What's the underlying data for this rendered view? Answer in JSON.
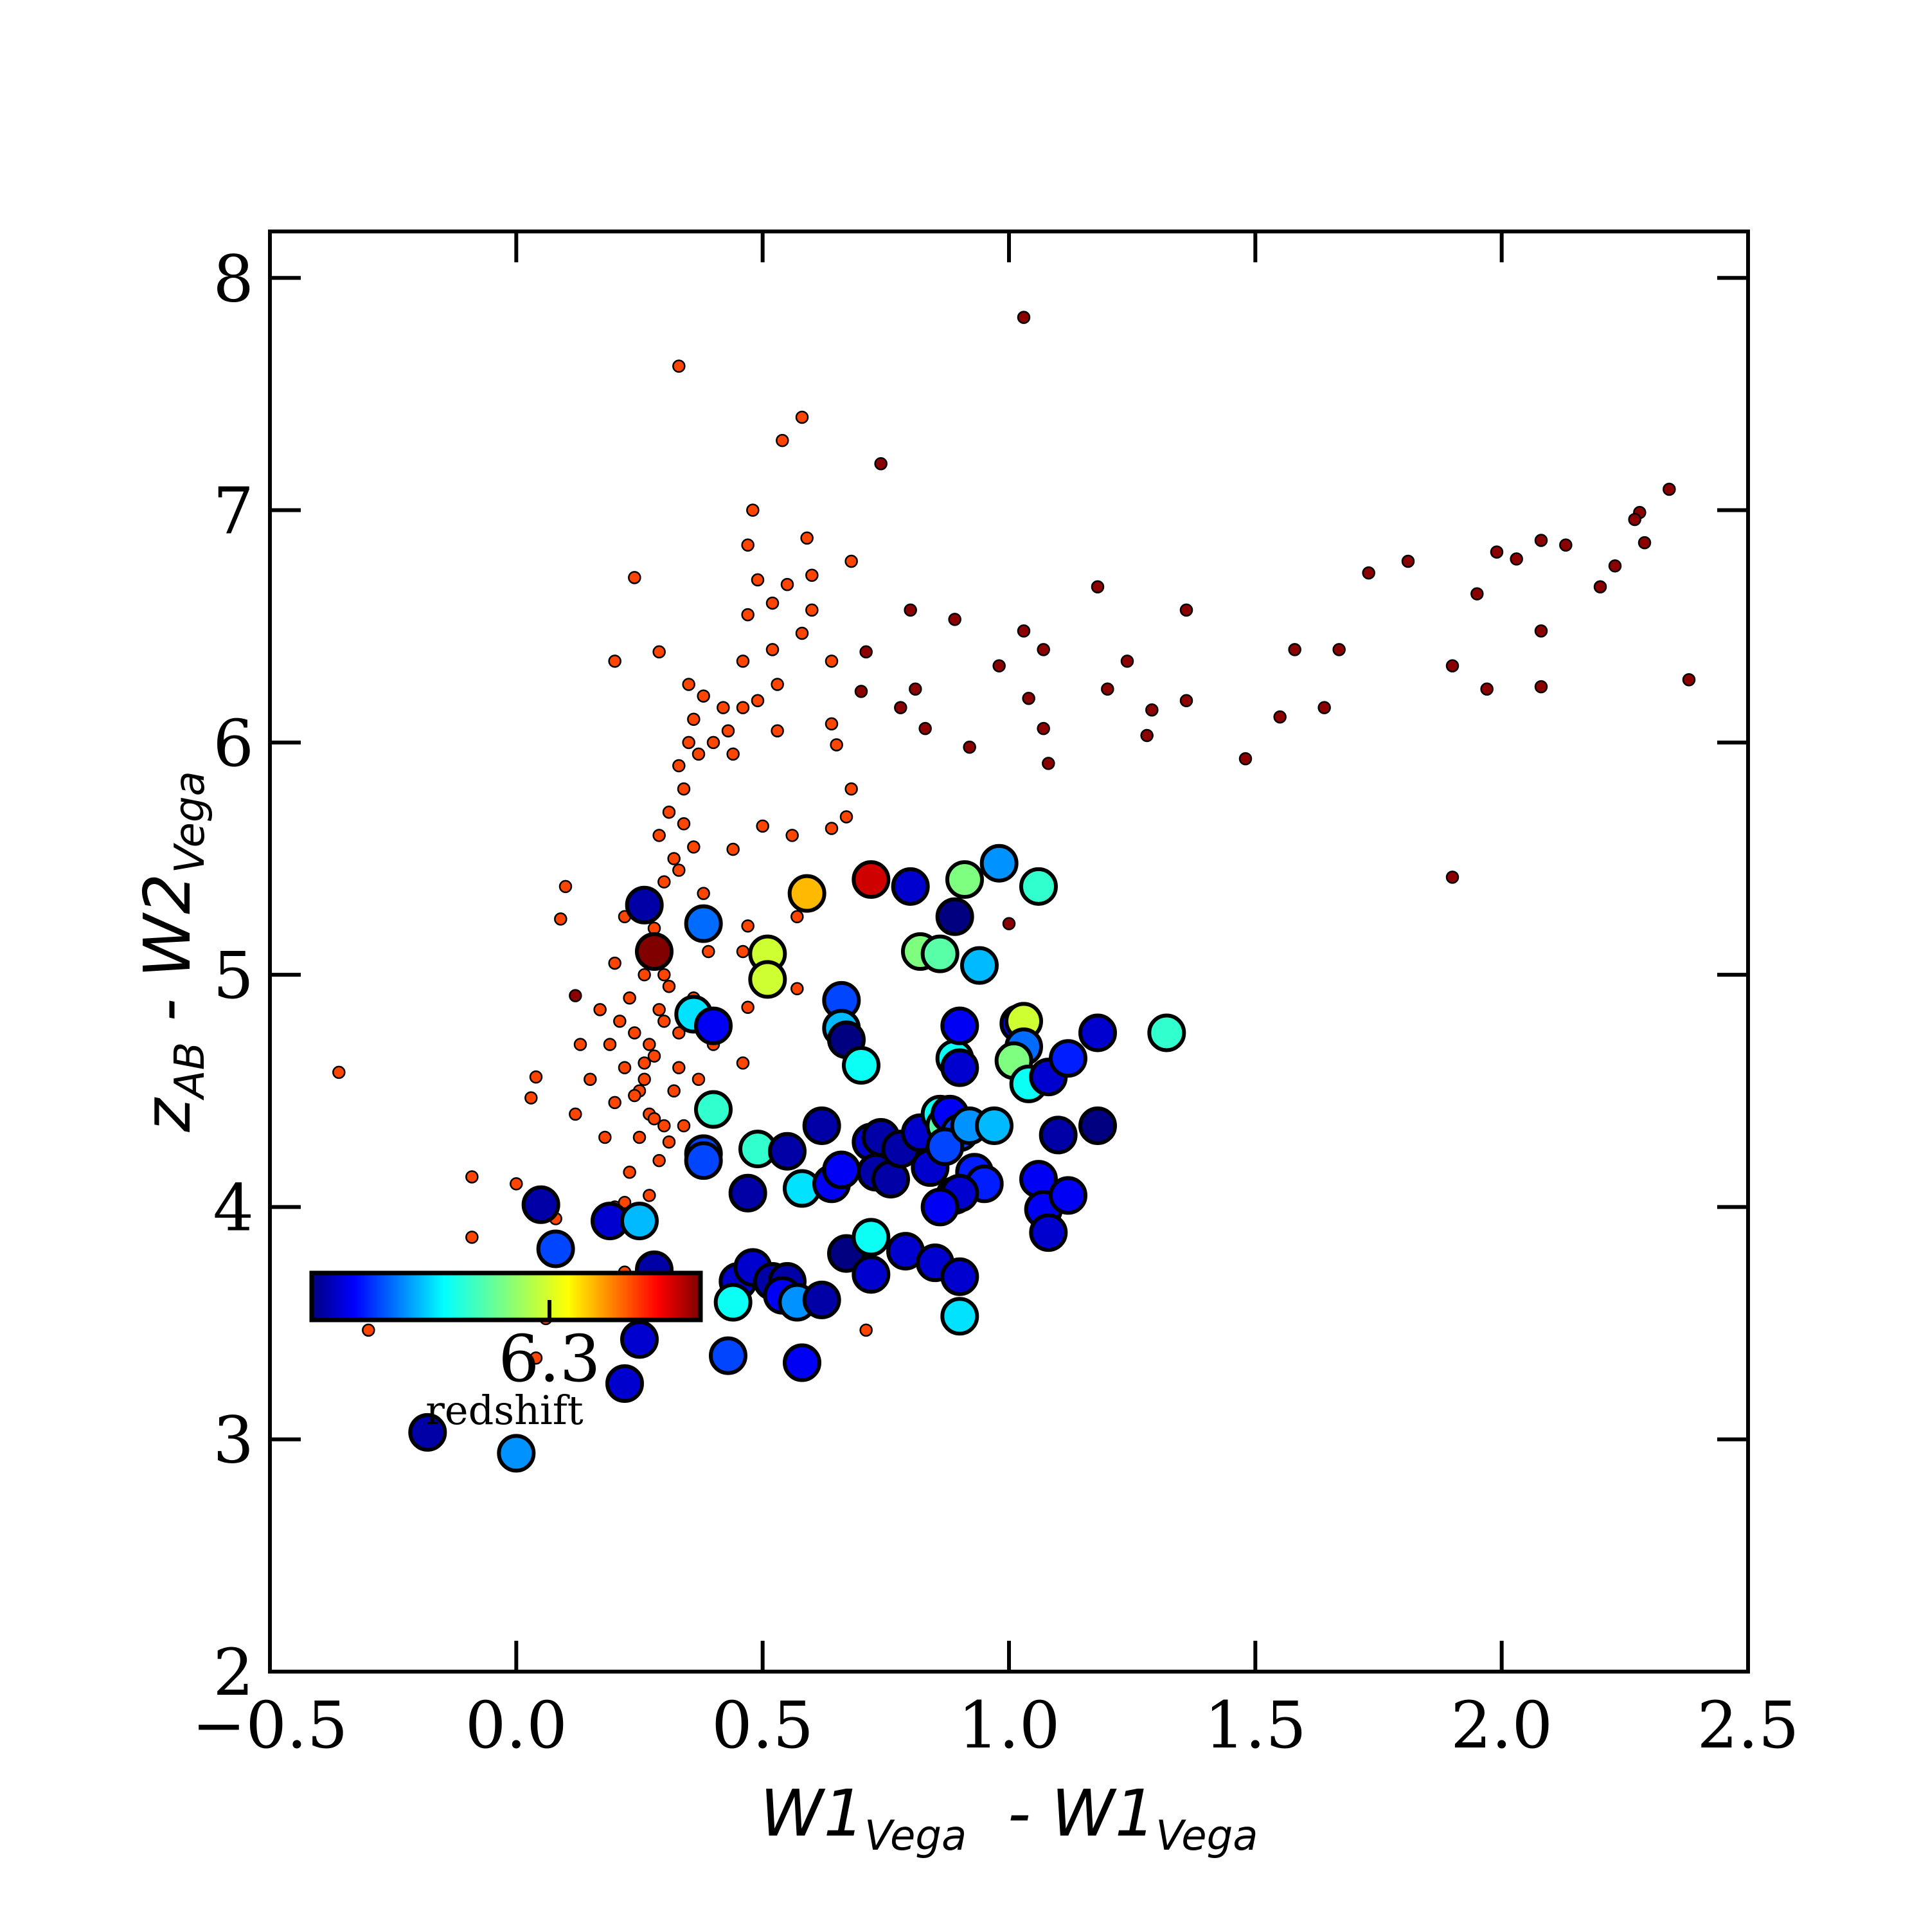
{
  "chart_data": {
    "type": "scatter",
    "xlabel": {
      "main_1": "W1",
      "sub_1": "Vega",
      "sep": "  - ",
      "main_2": "W1",
      "sub_2": "Vega"
    },
    "ylabel": {
      "main_1": "z",
      "sub_1": "AB",
      "sep": " - ",
      "main_2": "W2",
      "sub_2": "Vega"
    },
    "xlim": [
      -0.5,
      2.5
    ],
    "ylim": [
      2,
      8.2
    ],
    "x_ticks": [
      -0.5,
      0.0,
      0.5,
      1.0,
      1.5,
      2.0,
      2.5
    ],
    "x_tick_labels": [
      "−0.5",
      "0.0",
      "0.5",
      "1.0",
      "1.5",
      "2.0",
      "2.5"
    ],
    "y_ticks": [
      2,
      3,
      4,
      5,
      6,
      7,
      8
    ],
    "y_tick_labels": [
      "2",
      "3",
      "4",
      "5",
      "6",
      "7",
      "8"
    ],
    "grid": false,
    "colorbar": {
      "label": "redshift",
      "tick_value": 6.3,
      "tick_label": "6.3",
      "range": [
        5.7,
        7.0
      ],
      "colormap": "jet",
      "placement": "inside-lower-left"
    },
    "series": [
      {
        "marker": "small-circle",
        "color": "#ff4500",
        "points": [
          [
            0.25,
            4.5
          ],
          [
            0.22,
            4.6
          ],
          [
            0.27,
            4.7
          ],
          [
            0.3,
            4.8
          ],
          [
            0.23,
            4.9
          ],
          [
            0.26,
            4.55
          ],
          [
            0.28,
            4.65
          ],
          [
            0.24,
            4.75
          ],
          [
            0.29,
            4.85
          ],
          [
            0.31,
            4.95
          ],
          [
            0.2,
            4.45
          ],
          [
            0.33,
            4.6
          ],
          [
            0.21,
            4.8
          ],
          [
            0.27,
            4.4
          ],
          [
            0.25,
            4.3
          ],
          [
            0.3,
            4.35
          ],
          [
            0.19,
            4.7
          ],
          [
            0.32,
            4.5
          ],
          [
            0.26,
            5.0
          ],
          [
            0.28,
            5.2
          ],
          [
            0.24,
            5.3
          ],
          [
            0.3,
            5.4
          ],
          [
            0.32,
            5.5
          ],
          [
            0.29,
            5.6
          ],
          [
            0.31,
            5.7
          ],
          [
            0.34,
            5.8
          ],
          [
            0.33,
            5.9
          ],
          [
            0.35,
            6.0
          ],
          [
            0.36,
            6.1
          ],
          [
            0.38,
            6.2
          ],
          [
            0.35,
            6.25
          ],
          [
            0.4,
            6.0
          ],
          [
            0.42,
            6.15
          ],
          [
            0.37,
            5.95
          ],
          [
            0.34,
            5.65
          ],
          [
            0.36,
            5.55
          ],
          [
            0.33,
            5.45
          ],
          [
            0.38,
            5.35
          ],
          [
            0.39,
            5.1
          ],
          [
            0.36,
            4.9
          ],
          [
            0.4,
            4.7
          ],
          [
            0.37,
            4.55
          ],
          [
            0.34,
            4.35
          ],
          [
            0.29,
            4.2
          ],
          [
            0.23,
            4.15
          ],
          [
            0.18,
            4.3
          ],
          [
            0.15,
            4.55
          ],
          [
            0.17,
            4.85
          ],
          [
            0.2,
            5.05
          ],
          [
            0.22,
            5.25
          ],
          [
            0.27,
            5.1
          ],
          [
            0.3,
            5.0
          ],
          [
            0.33,
            4.75
          ],
          [
            0.26,
            4.62
          ],
          [
            0.24,
            4.48
          ],
          [
            0.28,
            4.38
          ],
          [
            0.31,
            4.28
          ],
          [
            0.27,
            4.05
          ],
          [
            0.24,
            3.98
          ],
          [
            0.2,
            4.0
          ],
          [
            0.46,
            6.35
          ],
          [
            0.47,
            6.55
          ],
          [
            0.49,
            6.7
          ],
          [
            0.52,
            6.6
          ],
          [
            0.55,
            6.68
          ],
          [
            0.47,
            6.85
          ],
          [
            0.48,
            7.0
          ],
          [
            0.52,
            6.4
          ],
          [
            0.53,
            6.25
          ],
          [
            0.49,
            6.18
          ],
          [
            0.43,
            6.05
          ],
          [
            0.46,
            6.15
          ],
          [
            0.44,
            5.95
          ],
          [
            0.53,
            6.05
          ],
          [
            0.58,
            6.47
          ],
          [
            0.6,
            6.57
          ],
          [
            0.6,
            6.72
          ],
          [
            0.64,
            6.35
          ],
          [
            0.68,
            6.78
          ],
          [
            0.59,
            6.88
          ],
          [
            0.58,
            7.4
          ],
          [
            0.54,
            7.3
          ],
          [
            0.33,
            7.62
          ],
          [
            0.24,
            6.71
          ],
          [
            0.2,
            6.35
          ],
          [
            0.29,
            6.39
          ],
          [
            0.64,
            6.08
          ],
          [
            0.65,
            5.99
          ],
          [
            0.67,
            5.68
          ],
          [
            0.68,
            5.8
          ],
          [
            0.64,
            5.63
          ],
          [
            0.56,
            5.6
          ],
          [
            0.5,
            5.64
          ],
          [
            0.44,
            5.54
          ],
          [
            0.47,
            5.21
          ],
          [
            0.46,
            5.1
          ],
          [
            0.47,
            4.86
          ],
          [
            0.46,
            4.62
          ],
          [
            0.57,
            5.25
          ],
          [
            0.57,
            4.94
          ],
          [
            0.1,
            5.38
          ],
          [
            0.09,
            5.24
          ],
          [
            0.04,
            4.56
          ],
          [
            0.03,
            4.47
          ],
          [
            0.0,
            4.1
          ],
          [
            -0.09,
            4.13
          ],
          [
            -0.09,
            3.87
          ],
          [
            -0.36,
            4.58
          ],
          [
            -0.3,
            3.47
          ],
          [
            0.08,
            3.95
          ],
          [
            0.04,
            3.35
          ],
          [
            0.06,
            3.52
          ],
          [
            0.22,
            3.72
          ],
          [
            0.2,
            3.65
          ],
          [
            0.25,
            3.57
          ],
          [
            0.71,
            3.47
          ],
          [
            0.22,
            4.02
          ],
          [
            0.26,
            3.9
          ],
          [
            0.12,
            4.4
          ],
          [
            0.13,
            4.7
          ]
        ]
      },
      {
        "marker": "small-circle",
        "color": "#8b0000",
        "points": [
          [
            1.03,
            7.83
          ],
          [
            0.74,
            7.2
          ],
          [
            2.34,
            7.09
          ],
          [
            2.28,
            6.99
          ],
          [
            2.27,
            6.96
          ],
          [
            2.08,
            6.87
          ],
          [
            2.13,
            6.85
          ],
          [
            2.29,
            6.86
          ],
          [
            1.99,
            6.82
          ],
          [
            2.03,
            6.79
          ],
          [
            1.81,
            6.78
          ],
          [
            2.23,
            6.76
          ],
          [
            1.73,
            6.73
          ],
          [
            1.18,
            6.67
          ],
          [
            2.2,
            6.67
          ],
          [
            1.95,
            6.64
          ],
          [
            1.36,
            6.57
          ],
          [
            0.8,
            6.57
          ],
          [
            0.89,
            6.53
          ],
          [
            1.03,
            6.48
          ],
          [
            2.08,
            6.48
          ],
          [
            1.07,
            6.4
          ],
          [
            1.58,
            6.4
          ],
          [
            1.67,
            6.4
          ],
          [
            0.71,
            6.39
          ],
          [
            1.24,
            6.35
          ],
          [
            0.98,
            6.33
          ],
          [
            1.9,
            6.33
          ],
          [
            2.38,
            6.27
          ],
          [
            0.81,
            6.23
          ],
          [
            1.2,
            6.23
          ],
          [
            2.08,
            6.24
          ],
          [
            1.97,
            6.23
          ],
          [
            0.7,
            6.22
          ],
          [
            1.04,
            6.19
          ],
          [
            1.36,
            6.18
          ],
          [
            0.78,
            6.15
          ],
          [
            1.64,
            6.15
          ],
          [
            1.29,
            6.14
          ],
          [
            1.55,
            6.11
          ],
          [
            0.83,
            6.06
          ],
          [
            1.07,
            6.06
          ],
          [
            1.28,
            6.03
          ],
          [
            0.92,
            5.98
          ],
          [
            1.48,
            5.93
          ],
          [
            1.08,
            5.91
          ],
          [
            1.0,
            5.22
          ],
          [
            1.9,
            5.42
          ],
          [
            0.12,
            4.91
          ]
        ]
      },
      {
        "marker": "large-circle",
        "points": [
          [
            0.72,
            5.41,
            6.9
          ],
          [
            0.59,
            5.35,
            6.6
          ],
          [
            0.91,
            5.41,
            6.35
          ],
          [
            0.98,
            5.48,
            6.05
          ],
          [
            0.8,
            5.38,
            5.8
          ],
          [
            1.06,
            5.38,
            6.25
          ],
          [
            0.38,
            5.22,
            6.0
          ],
          [
            0.26,
            5.3,
            5.75
          ],
          [
            0.28,
            5.1,
            7.0
          ],
          [
            0.51,
            5.09,
            6.45
          ],
          [
            0.51,
            4.98,
            6.45
          ],
          [
            0.82,
            5.1,
            6.35
          ],
          [
            0.86,
            5.09,
            6.3
          ],
          [
            0.89,
            5.25,
            5.7
          ],
          [
            0.94,
            5.04,
            6.1
          ],
          [
            0.66,
            4.89,
            5.95
          ],
          [
            0.36,
            4.83,
            6.15
          ],
          [
            0.4,
            4.78,
            5.85
          ],
          [
            0.66,
            4.77,
            6.1
          ],
          [
            0.67,
            4.72,
            5.7
          ],
          [
            0.7,
            4.61,
            6.2
          ],
          [
            0.89,
            4.64,
            6.2
          ],
          [
            0.9,
            4.78,
            5.85
          ],
          [
            1.02,
            4.79,
            5.85
          ],
          [
            1.03,
            4.8,
            6.45
          ],
          [
            1.03,
            4.69,
            6.0
          ],
          [
            1.01,
            4.63,
            6.35
          ],
          [
            1.04,
            4.53,
            6.2
          ],
          [
            1.08,
            4.56,
            5.8
          ],
          [
            1.12,
            4.64,
            5.9
          ],
          [
            1.18,
            4.75,
            5.8
          ],
          [
            1.32,
            4.75,
            6.25
          ],
          [
            0.9,
            4.6,
            5.8
          ],
          [
            0.4,
            4.42,
            6.25
          ],
          [
            0.38,
            4.23,
            5.95
          ],
          [
            0.38,
            4.2,
            5.95
          ],
          [
            0.49,
            4.25,
            6.25
          ],
          [
            0.55,
            4.24,
            5.75
          ],
          [
            0.62,
            4.35,
            5.75
          ],
          [
            0.47,
            4.06,
            5.75
          ],
          [
            0.58,
            4.08,
            6.15
          ],
          [
            0.64,
            4.1,
            5.85
          ],
          [
            0.66,
            4.16,
            5.85
          ],
          [
            0.72,
            4.28,
            5.8
          ],
          [
            0.74,
            4.3,
            5.75
          ],
          [
            0.73,
            4.15,
            5.75
          ],
          [
            0.76,
            4.12,
            5.75
          ],
          [
            0.78,
            4.25,
            5.75
          ],
          [
            0.82,
            4.32,
            5.8
          ],
          [
            0.84,
            4.17,
            5.8
          ],
          [
            0.86,
            4.4,
            6.2
          ],
          [
            0.87,
            4.35,
            6.3
          ],
          [
            0.88,
            4.4,
            5.85
          ],
          [
            0.9,
            4.32,
            5.95
          ],
          [
            0.87,
            4.26,
            5.95
          ],
          [
            0.92,
            4.35,
            6.05
          ],
          [
            0.97,
            4.35,
            6.1
          ],
          [
            0.93,
            4.15,
            5.9
          ],
          [
            0.95,
            4.1,
            5.9
          ],
          [
            0.89,
            4.05,
            5.85
          ],
          [
            0.9,
            4.06,
            5.8
          ],
          [
            0.86,
            4.0,
            5.85
          ],
          [
            1.06,
            4.12,
            5.85
          ],
          [
            1.1,
            4.31,
            5.75
          ],
          [
            1.18,
            4.35,
            5.7
          ],
          [
            1.07,
            3.99,
            5.85
          ],
          [
            1.12,
            4.05,
            5.85
          ],
          [
            1.08,
            3.89,
            5.8
          ],
          [
            0.05,
            4.01,
            5.75
          ],
          [
            0.08,
            3.82,
            5.95
          ],
          [
            0.19,
            3.94,
            5.8
          ],
          [
            0.25,
            3.94,
            6.1
          ],
          [
            0.28,
            3.73,
            5.75
          ],
          [
            0.45,
            3.68,
            5.8
          ],
          [
            0.48,
            3.74,
            5.8
          ],
          [
            0.52,
            3.68,
            5.75
          ],
          [
            0.55,
            3.68,
            5.75
          ],
          [
            0.54,
            3.62,
            5.85
          ],
          [
            0.57,
            3.59,
            6.05
          ],
          [
            0.62,
            3.6,
            5.75
          ],
          [
            0.67,
            3.8,
            5.7
          ],
          [
            0.72,
            3.87,
            6.2
          ],
          [
            0.72,
            3.71,
            5.8
          ],
          [
            0.79,
            3.81,
            5.8
          ],
          [
            0.85,
            3.76,
            5.8
          ],
          [
            0.9,
            3.7,
            5.8
          ],
          [
            0.44,
            3.59,
            6.2
          ],
          [
            0.43,
            3.36,
            5.95
          ],
          [
            0.58,
            3.33,
            5.85
          ],
          [
            0.9,
            3.53,
            6.15
          ],
          [
            0.25,
            3.43,
            5.8
          ],
          [
            0.22,
            3.24,
            5.8
          ],
          [
            -0.18,
            3.03,
            5.75
          ],
          [
            0.0,
            2.94,
            6.05
          ]
        ]
      }
    ]
  }
}
